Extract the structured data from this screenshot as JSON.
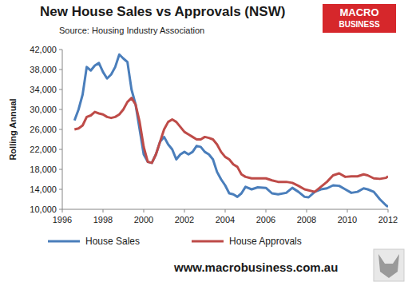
{
  "chart_data": {
    "type": "line",
    "title": "New House Sales vs Approvals (NSW)",
    "subtitle": "Source:  Housing Industry Association",
    "y_label": "Rolling Annual",
    "logo_lines": [
      "MACRO",
      "BUSINESS"
    ],
    "footer": "www.macrobusiness.com.au",
    "x": [
      1996.6,
      1996.8,
      1997.0,
      1997.2,
      1997.4,
      1997.6,
      1997.8,
      1998.0,
      1998.2,
      1998.4,
      1998.6,
      1998.8,
      1999.0,
      1999.2,
      1999.4,
      1999.6,
      1999.8,
      2000.0,
      2000.2,
      2000.4,
      2000.6,
      2000.8,
      2001.0,
      2001.2,
      2001.4,
      2001.6,
      2001.8,
      2002.0,
      2002.2,
      2002.4,
      2002.6,
      2002.8,
      2003.0,
      2003.2,
      2003.4,
      2003.6,
      2003.8,
      2004.0,
      2004.2,
      2004.4,
      2004.6,
      2004.8,
      2005.0,
      2005.3,
      2005.6,
      2006.0,
      2006.3,
      2006.6,
      2007.0,
      2007.3,
      2007.6,
      2007.9,
      2008.1,
      2008.4,
      2008.7,
      2009.0,
      2009.3,
      2009.6,
      2009.9,
      2010.2,
      2010.5,
      2010.8,
      2011.0,
      2011.3,
      2011.6,
      2011.9,
      2012.0
    ],
    "series": [
      {
        "name": "House Sales",
        "color": "#4a7ebb",
        "values": [
          27800,
          30000,
          33000,
          38500,
          37800,
          38800,
          39300,
          37500,
          36200,
          37000,
          38500,
          41000,
          40200,
          39500,
          34000,
          31000,
          26000,
          21000,
          19500,
          19300,
          21000,
          23500,
          24500,
          23000,
          22000,
          20000,
          21000,
          21500,
          21000,
          21500,
          22700,
          22500,
          21500,
          21000,
          20000,
          17500,
          16000,
          14800,
          13200,
          13000,
          12500,
          13200,
          14500,
          14000,
          14400,
          14300,
          13200,
          13000,
          13300,
          14300,
          13500,
          12500,
          12400,
          13500,
          14000,
          14200,
          14800,
          14700,
          14000,
          13300,
          13500,
          14200,
          14000,
          13500,
          12000,
          10800,
          10500
        ]
      },
      {
        "name": "House Approvals",
        "color": "#be4b48",
        "values": [
          26000,
          26200,
          26800,
          28500,
          28800,
          29500,
          29200,
          29000,
          28500,
          28300,
          28500,
          29000,
          30000,
          31500,
          32300,
          31000,
          27500,
          22500,
          19500,
          19300,
          21000,
          23500,
          26000,
          27500,
          28000,
          27500,
          26500,
          25500,
          25000,
          24500,
          24000,
          24000,
          24500,
          24300,
          24000,
          23000,
          21500,
          20500,
          20000,
          19000,
          18500,
          17000,
          16500,
          16200,
          16200,
          16200,
          15800,
          15500,
          15500,
          15300,
          14700,
          14000,
          13800,
          13500,
          14500,
          15500,
          16800,
          17200,
          16500,
          16600,
          16600,
          17000,
          16800,
          16200,
          16100,
          16300,
          16600
        ]
      }
    ],
    "xlim": [
      1996,
      2012
    ],
    "xticks": [
      1996,
      1998,
      2000,
      2002,
      2004,
      2006,
      2008,
      2010,
      2012
    ],
    "ylim": [
      10000,
      42000
    ],
    "yticks": [
      {
        "value": 10000,
        "label": "10,000"
      },
      {
        "value": 14000,
        "label": "14,000"
      },
      {
        "value": 18000,
        "label": "18,000"
      },
      {
        "value": 22000,
        "label": "22,000"
      },
      {
        "value": 26000,
        "label": "26,000"
      },
      {
        "value": 30000,
        "label": "30,000"
      },
      {
        "value": 34000,
        "label": "34,000"
      },
      {
        "value": 38000,
        "label": "38,000"
      },
      {
        "value": 42000,
        "label": "42,000"
      }
    ],
    "grid": false,
    "legend": "bottom"
  }
}
